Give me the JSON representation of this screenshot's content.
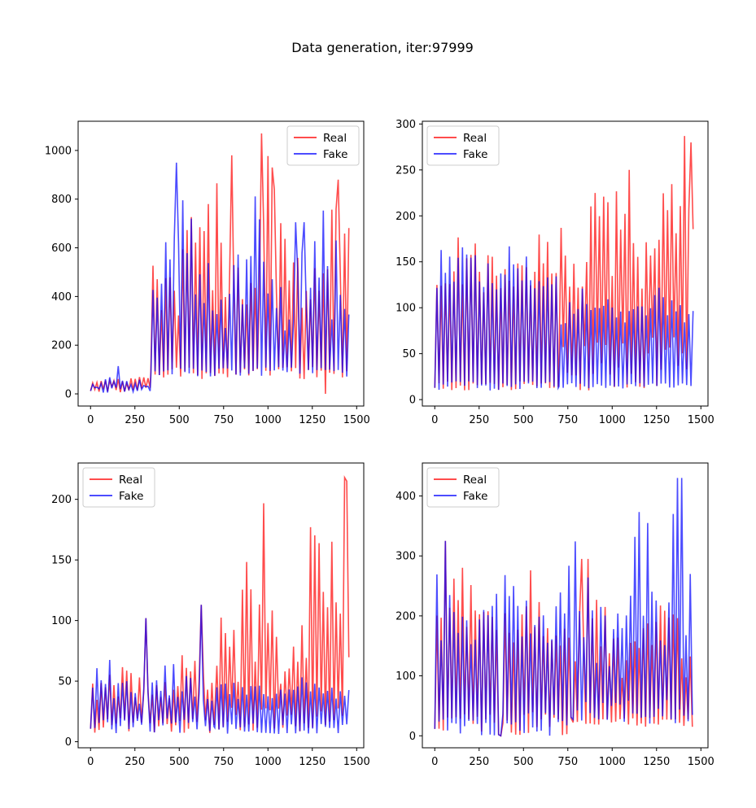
{
  "figure": {
    "title": "Data generation, iter:97999"
  },
  "colors": {
    "real": "#ff0000",
    "fake": "#0000ff",
    "overlap_hint": "purple (alpha blend of red and blue)"
  },
  "chart_data": [
    {
      "type": "line",
      "title": "",
      "xlabel": "",
      "ylabel": "",
      "xlim": [
        -70,
        1540
      ],
      "ylim": [
        -50,
        1120
      ],
      "xticks": [
        0,
        250,
        500,
        750,
        1000,
        1250,
        1500
      ],
      "yticks": [
        0,
        200,
        400,
        600,
        800,
        1000
      ],
      "legend": "top-right",
      "series_params": [
        {
          "name": "Real",
          "color": "#ff0000",
          "segments": [
            {
              "x0": 0,
              "x1": 340,
              "period": 24,
              "lows": [
                5,
                30
              ],
              "highs": [
                20,
                120
              ]
            },
            {
              "x0": 340,
              "x1": 1460,
              "period": 24,
              "lows": [
                60,
                110
              ],
              "highs": [
                250,
                1070
              ],
              "spikes": [
                [
                  795,
                  980
                ],
                [
                  960,
                  1070
                ],
                [
                  1040,
                  840
                ],
                [
                  1330,
                  900
                ],
                [
                  1400,
                  880
                ],
                [
                  1320,
                  0
                ]
              ]
            }
          ]
        },
        {
          "name": "Fake",
          "color": "#0000ff",
          "segments": [
            {
              "x0": 0,
              "x1": 340,
              "period": 24,
              "lows": [
                5,
                30
              ],
              "highs": [
                20,
                120
              ]
            },
            {
              "x0": 340,
              "x1": 1460,
              "period": 24,
              "lows": [
                70,
                110
              ],
              "highs": [
                250,
                950
              ],
              "spikes": [
                [
                  490,
                  950
                ],
                [
                  1160,
                  705
                ],
                [
                  1200,
                  705
                ]
              ]
            }
          ]
        }
      ]
    },
    {
      "type": "line",
      "title": "",
      "xlabel": "",
      "ylabel": "",
      "xlim": [
        -70,
        1540
      ],
      "ylim": [
        -7,
        303
      ],
      "xticks": [
        0,
        250,
        500,
        750,
        1000,
        1250,
        1500
      ],
      "yticks": [
        0,
        50,
        100,
        150,
        200,
        250,
        300
      ],
      "legend": "top-left",
      "series_params": [
        {
          "name": "Real",
          "color": "#ff0000",
          "segments": [
            {
              "x0": 0,
              "x1": 700,
              "period": 24,
              "lows": [
                10,
                20
              ],
              "highs": [
                110,
                220
              ]
            },
            {
              "x0": 700,
              "x1": 1460,
              "period": 24,
              "lows": [
                10,
                70
              ],
              "highs": [
                110,
                287
              ],
              "spikes": [
                [
                  905,
                  225
                ],
                [
                  1100,
                  250
                ],
                [
                  1410,
                  287
                ],
                [
                  1440,
                  280
                ]
              ]
            }
          ]
        },
        {
          "name": "Fake",
          "color": "#0000ff",
          "segments": [
            {
              "x0": 0,
              "x1": 700,
              "period": 24,
              "lows": [
                10,
                20
              ],
              "highs": [
                110,
                220
              ]
            },
            {
              "x0": 700,
              "x1": 1460,
              "period": 24,
              "lows": [
                12,
                18
              ],
              "highs": [
                80,
                135
              ]
            }
          ]
        }
      ]
    },
    {
      "type": "line",
      "title": "",
      "xlabel": "",
      "ylabel": "",
      "xlim": [
        -70,
        1540
      ],
      "ylim": [
        -5,
        230
      ],
      "xticks": [
        0,
        250,
        500,
        750,
        1000,
        1250,
        1500
      ],
      "yticks": [
        0,
        50,
        100,
        150,
        200
      ],
      "legend": "top-left",
      "series_params": [
        {
          "name": "Real",
          "color": "#ff0000",
          "segments": [
            {
              "x0": 0,
              "x1": 700,
              "period": 24,
              "lows": [
                7,
                20
              ],
              "highs": [
                30,
                80
              ],
              "spikes": [
                [
                  310,
                  102
                ],
                [
                  620,
                  113
                ]
              ]
            },
            {
              "x0": 700,
              "x1": 1460,
              "period": 24,
              "lows": [
                8,
                30
              ],
              "highs": [
                40,
                220
              ],
              "spikes": [
                [
                  1240,
                  177
                ],
                [
                  1360,
                  165
                ],
                [
                  1430,
                  218
                ],
                [
                  1440,
                  215
                ]
              ]
            }
          ]
        },
        {
          "name": "Fake",
          "color": "#0000ff",
          "segments": [
            {
              "x0": 0,
              "x1": 700,
              "period": 24,
              "lows": [
                7,
                20
              ],
              "highs": [
                30,
                80
              ],
              "spikes": [
                [
                  310,
                  102
                ],
                [
                  620,
                  113
                ]
              ]
            },
            {
              "x0": 700,
              "x1": 1460,
              "period": 24,
              "lows": [
                6,
                15
              ],
              "highs": [
                35,
                60
              ]
            }
          ]
        }
      ]
    },
    {
      "type": "line",
      "title": "",
      "xlabel": "",
      "ylabel": "",
      "xlim": [
        -70,
        1540
      ],
      "ylim": [
        -20,
        455
      ],
      "xticks": [
        0,
        250,
        500,
        750,
        1000,
        1250,
        1500
      ],
      "yticks": [
        0,
        100,
        200,
        300,
        400
      ],
      "legend": "top-left",
      "series_params": [
        {
          "name": "Real",
          "color": "#ff0000",
          "segments": [
            {
              "x0": 0,
              "x1": 780,
              "period": 24,
              "lows": [
                0,
                40
              ],
              "highs": [
                150,
                325
              ],
              "spikes": [
                [
                  55,
                  325
                ],
                [
                  370,
                  0
                ]
              ]
            },
            {
              "x0": 780,
              "x1": 1460,
              "period": 24,
              "lows": [
                15,
                30
              ],
              "highs": [
                80,
                295
              ],
              "spikes": [
                [
                  830,
                  295
                ],
                [
                  870,
                  295
                ]
              ]
            }
          ]
        },
        {
          "name": "Fake",
          "color": "#0000ff",
          "segments": [
            {
              "x0": 0,
              "x1": 780,
              "period": 24,
              "lows": [
                0,
                40
              ],
              "highs": [
                150,
                325
              ],
              "spikes": [
                [
                  55,
                  325
                ],
                [
                  370,
                  0
                ]
              ]
            },
            {
              "x0": 780,
              "x1": 1460,
              "period": 24,
              "lows": [
                20,
                60
              ],
              "highs": [
                100,
                430
              ],
              "spikes": [
                [
                  1200,
                  355
                ],
                [
                  1350,
                  370
                ],
                [
                  1370,
                  430
                ],
                [
                  1390,
                  430
                ]
              ]
            }
          ]
        }
      ]
    }
  ]
}
